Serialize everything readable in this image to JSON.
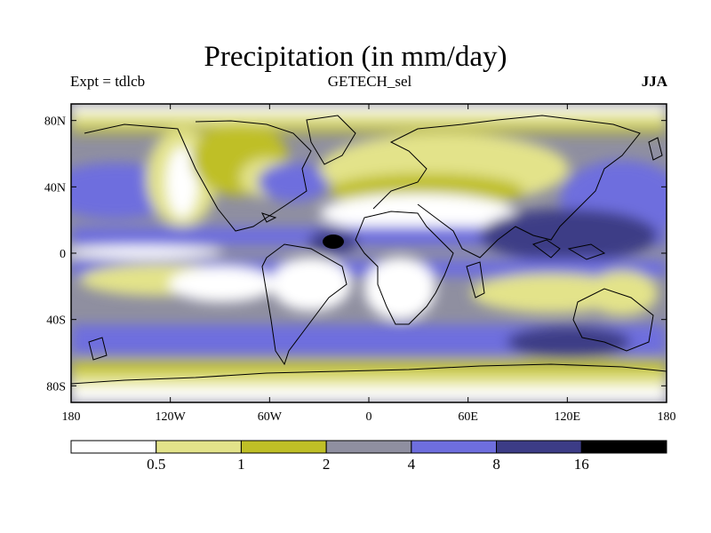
{
  "title": "Precipitation (in mm/day)",
  "subtitle_left": "Expt = tdlcb",
  "subtitle_center": "GETECH_sel",
  "subtitle_right": "JJA",
  "map": {
    "lon_range": [
      -180,
      180
    ],
    "lat_range": [
      -90,
      90
    ],
    "lat_ticks": [
      {
        "value": 80,
        "label": "80N"
      },
      {
        "value": 40,
        "label": "40N"
      },
      {
        "value": 0,
        "label": "0"
      },
      {
        "value": -40,
        "label": "40S"
      },
      {
        "value": -80,
        "label": "80S"
      }
    ],
    "lon_ticks": [
      {
        "value": -180,
        "label": "180"
      },
      {
        "value": -120,
        "label": "120W"
      },
      {
        "value": -60,
        "label": "60W"
      },
      {
        "value": 0,
        "label": "0"
      },
      {
        "value": 60,
        "label": "60E"
      },
      {
        "value": 120,
        "label": "120E"
      },
      {
        "value": 180,
        "label": "180"
      }
    ]
  },
  "colorbar": {
    "colors": [
      "#ffffff",
      "#e3e38a",
      "#bfbf26",
      "#8f8fa0",
      "#6e6ede",
      "#3c3c86",
      "#000000"
    ],
    "labels": [
      "0.5",
      "1",
      "2",
      "4",
      "8",
      "16"
    ]
  }
}
